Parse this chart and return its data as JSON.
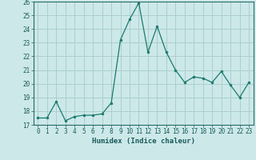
{
  "x": [
    0,
    1,
    2,
    3,
    4,
    5,
    6,
    7,
    8,
    9,
    10,
    11,
    12,
    13,
    14,
    15,
    16,
    17,
    18,
    19,
    20,
    21,
    22,
    23
  ],
  "y": [
    17.5,
    17.5,
    18.7,
    17.3,
    17.6,
    17.7,
    17.7,
    17.8,
    18.6,
    23.2,
    24.7,
    25.9,
    22.3,
    24.2,
    22.3,
    21.0,
    20.1,
    20.5,
    20.4,
    20.1,
    20.9,
    19.9,
    19.0,
    20.1
  ],
  "xlabel": "Humidex (Indice chaleur)",
  "xlim": [
    -0.5,
    23.5
  ],
  "ylim": [
    17,
    26
  ],
  "yticks": [
    17,
    18,
    19,
    20,
    21,
    22,
    23,
    24,
    25,
    26
  ],
  "xticks": [
    0,
    1,
    2,
    3,
    4,
    5,
    6,
    7,
    8,
    9,
    10,
    11,
    12,
    13,
    14,
    15,
    16,
    17,
    18,
    19,
    20,
    21,
    22,
    23
  ],
  "line_color": "#1a7a6e",
  "marker_color": "#1a7a6e",
  "bg_color": "#cce8e8",
  "grid_color": "#aacfcf",
  "axis_color": "#2a6a6a",
  "tick_color": "#1a5a5a",
  "xlabel_color": "#1a5a5a"
}
